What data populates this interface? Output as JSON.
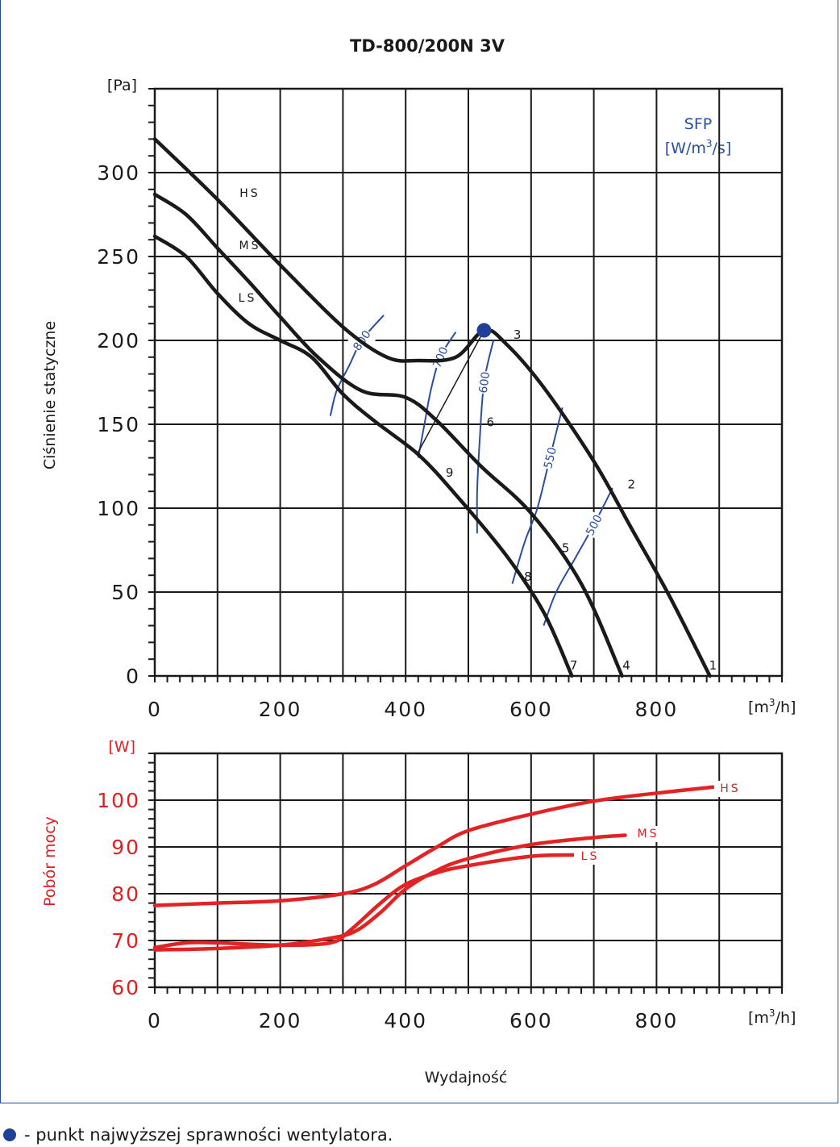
{
  "chart_data": [
    {
      "type": "line",
      "title": "TD-800/200N 3V",
      "xlabel": "",
      "ylabel": "Ciśnienie statyczne",
      "x_unit": "[m3/h]",
      "y_unit": "[Pa]",
      "xlim": [
        0,
        1000
      ],
      "ylim": [
        0,
        350
      ],
      "x_ticks": [
        "0",
        "200",
        "400",
        "600",
        "800"
      ],
      "y_ticks": [
        "0",
        "50",
        "100",
        "150",
        "200",
        "250",
        "300"
      ],
      "grid": true,
      "series": [
        {
          "name": "HS",
          "x": [
            0,
            100,
            200,
            300,
            370,
            420,
            480,
            525,
            560,
            620,
            700,
            760,
            820,
            885
          ],
          "y": [
            320,
            284,
            245,
            208,
            190,
            188,
            190,
            206,
            198,
            172,
            128,
            88,
            48,
            0
          ]
        },
        {
          "name": "MS",
          "x": [
            0,
            50,
            100,
            150,
            200,
            260,
            330,
            400,
            450,
            520,
            600,
            680,
            745
          ],
          "y": [
            287,
            275,
            255,
            235,
            214,
            190,
            170,
            166,
            152,
            125,
            97,
            55,
            0
          ]
        },
        {
          "name": "LS",
          "x": [
            0,
            50,
            100,
            150,
            200,
            250,
            300,
            350,
            420,
            480,
            560,
            620,
            665
          ],
          "y": [
            262,
            250,
            228,
            210,
            200,
            190,
            168,
            152,
            132,
            108,
            72,
            38,
            0
          ]
        }
      ],
      "point_labels": [
        {
          "label": "1",
          "x": 890,
          "y": 0
        },
        {
          "label": "2",
          "x": 760,
          "y": 108
        },
        {
          "label": "3",
          "x": 578,
          "y": 197
        },
        {
          "label": "4",
          "x": 752,
          "y": 0
        },
        {
          "label": "5",
          "x": 655,
          "y": 70
        },
        {
          "label": "6",
          "x": 535,
          "y": 145
        },
        {
          "label": "7",
          "x": 668,
          "y": 0
        },
        {
          "label": "8",
          "x": 595,
          "y": 53
        },
        {
          "label": "9",
          "x": 470,
          "y": 115
        }
      ],
      "best_efficiency_point": {
        "x": 525,
        "y": 206
      },
      "sfp": {
        "title": "SFP",
        "unit": "[W/m3/s]",
        "lines": [
          {
            "label": "800",
            "x": [
              365,
              330,
              310,
              290,
              280
            ],
            "y": [
              215,
              200,
              185,
              170,
              155
            ]
          },
          {
            "label": "700",
            "x": [
              480,
              455,
              440,
              430,
              420
            ],
            "y": [
              205,
              190,
              170,
              150,
              130
            ]
          },
          {
            "label": "600",
            "x": [
              540,
              525,
              518,
              514,
              514
            ],
            "y": [
              200,
              175,
              140,
              110,
              85
            ]
          },
          {
            "label": "550",
            "x": [
              650,
              630,
              610,
              590,
              570
            ],
            "y": [
              160,
              130,
              100,
              80,
              55
            ]
          },
          {
            "label": "500",
            "x": [
              730,
              700,
              670,
              640,
              620
            ],
            "y": [
              112,
              90,
              70,
              50,
              30
            ]
          }
        ]
      },
      "efficiency_connector": [
        {
          "x": 418,
          "y": 132
        },
        {
          "x": 525,
          "y": 206
        }
      ]
    },
    {
      "type": "line",
      "title": "",
      "xlabel": "Wydajność",
      "ylabel": "Pobór mocy",
      "x_unit": "[m3/h]",
      "y_unit": "[W]",
      "xlim": [
        0,
        1000
      ],
      "ylim": [
        60,
        110
      ],
      "x_ticks": [
        "0",
        "200",
        "400",
        "600",
        "800"
      ],
      "y_ticks": [
        "60",
        "70",
        "80",
        "90",
        "100"
      ],
      "grid": true,
      "series": [
        {
          "name": "HS",
          "x": [
            0,
            100,
            200,
            300,
            350,
            400,
            450,
            500,
            600,
            700,
            800,
            890
          ],
          "y": [
            77.5,
            78,
            78.5,
            80,
            82,
            86,
            90,
            93.5,
            97,
            99.8,
            101.5,
            102.8
          ]
        },
        {
          "name": "MS",
          "x": [
            0,
            100,
            200,
            280,
            320,
            360,
            400,
            450,
            500,
            600,
            700,
            750
          ],
          "y": [
            68,
            68.3,
            69,
            70.5,
            72,
            76,
            81,
            85,
            87.5,
            90.5,
            92,
            92.5
          ]
        },
        {
          "name": "LS",
          "x": [
            0,
            50,
            100,
            200,
            280,
            310,
            360,
            400,
            450,
            500,
            600,
            670
          ],
          "y": [
            68.5,
            69.5,
            69.5,
            69,
            69.5,
            72,
            78,
            82,
            84.5,
            86,
            88,
            88.3
          ]
        }
      ]
    }
  ],
  "footnote": "- punkt najwyższej sprawności wentylatora.",
  "colors": {
    "curve": "#1a1a1a",
    "power": "#e32323",
    "sfp": "#2a4d9f",
    "grid": "#1a1a1a",
    "dot": "#1f3f99"
  }
}
